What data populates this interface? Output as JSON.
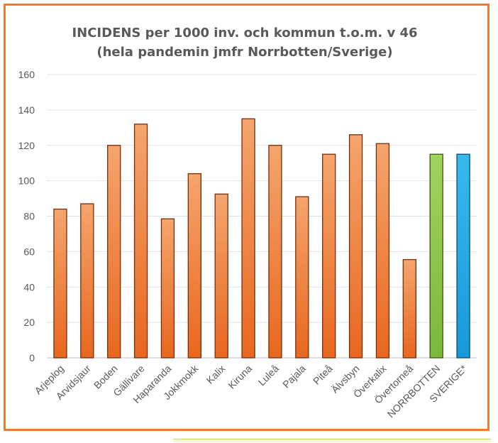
{
  "chart_data": {
    "type": "bar",
    "title": "INCIDENS per 1000 inv. och kommun t.o.m. v 46",
    "subtitle": "(hela pandemin jmfr Norrbotten/Sverige)",
    "xlabel": "",
    "ylabel": "",
    "ylim": [
      0,
      160
    ],
    "yticks": [
      "0",
      "20",
      "40",
      "60",
      "80",
      "100",
      "120",
      "140",
      "160"
    ],
    "grid": true,
    "categories": [
      "Arjeplog",
      "Arvidsjaur",
      "Boden",
      "Gällivare",
      "Haparanda",
      "Jokkmokk",
      "Kalix",
      "Kiruna",
      "Luleå",
      "Pajala",
      "Piteå",
      "Älvsbyn",
      "Överkalix",
      "Övertorneå",
      "NORRBOTTEN",
      "SVERIGE*"
    ],
    "values": [
      84,
      87,
      120,
      132,
      78.5,
      104,
      92.5,
      135,
      120,
      91,
      115,
      126,
      121,
      55.5,
      115,
      115
    ],
    "colors": [
      "#ed7d31",
      "#ed7d31",
      "#ed7d31",
      "#ed7d31",
      "#ed7d31",
      "#ed7d31",
      "#ed7d31",
      "#ed7d31",
      "#ed7d31",
      "#ed7d31",
      "#ed7d31",
      "#ed7d31",
      "#ed7d31",
      "#ed7d31",
      "#8cc63f",
      "#1ea7e1"
    ],
    "border_color": "#ed7d31"
  }
}
